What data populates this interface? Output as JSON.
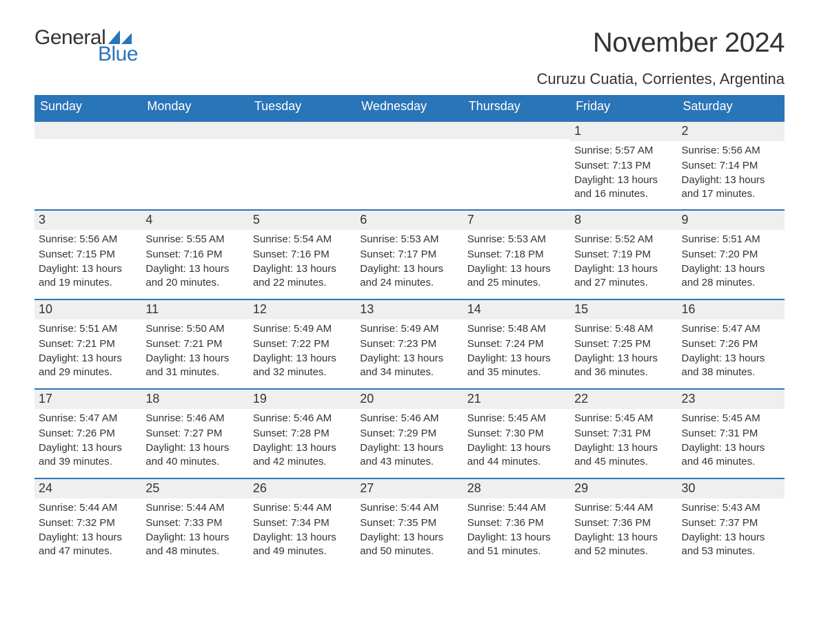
{
  "logo": {
    "top": "General",
    "bottom": "Blue"
  },
  "colors": {
    "brand_blue": "#2a74b8",
    "header_blue": "#2a74b8",
    "row_sep_blue": "#2a74b8",
    "day_header_bg": "#efefef",
    "text": "#333333",
    "background": "#ffffff"
  },
  "typography": {
    "family": "Arial, Helvetica, sans-serif",
    "month_title_size": 40,
    "location_size": 22,
    "weekday_size": 18,
    "daynum_size": 18,
    "body_size": 15
  },
  "month_title": "November 2024",
  "location": "Curuzu Cuatia, Corrientes, Argentina",
  "weekdays": [
    "Sunday",
    "Monday",
    "Tuesday",
    "Wednesday",
    "Thursday",
    "Friday",
    "Saturday"
  ],
  "weeks": [
    [
      null,
      null,
      null,
      null,
      null,
      {
        "d": "1",
        "sunrise": "5:57 AM",
        "sunset": "7:13 PM",
        "daylight": "13 hours and 16 minutes."
      },
      {
        "d": "2",
        "sunrise": "5:56 AM",
        "sunset": "7:14 PM",
        "daylight": "13 hours and 17 minutes."
      }
    ],
    [
      {
        "d": "3",
        "sunrise": "5:56 AM",
        "sunset": "7:15 PM",
        "daylight": "13 hours and 19 minutes."
      },
      {
        "d": "4",
        "sunrise": "5:55 AM",
        "sunset": "7:16 PM",
        "daylight": "13 hours and 20 minutes."
      },
      {
        "d": "5",
        "sunrise": "5:54 AM",
        "sunset": "7:16 PM",
        "daylight": "13 hours and 22 minutes."
      },
      {
        "d": "6",
        "sunrise": "5:53 AM",
        "sunset": "7:17 PM",
        "daylight": "13 hours and 24 minutes."
      },
      {
        "d": "7",
        "sunrise": "5:53 AM",
        "sunset": "7:18 PM",
        "daylight": "13 hours and 25 minutes."
      },
      {
        "d": "8",
        "sunrise": "5:52 AM",
        "sunset": "7:19 PM",
        "daylight": "13 hours and 27 minutes."
      },
      {
        "d": "9",
        "sunrise": "5:51 AM",
        "sunset": "7:20 PM",
        "daylight": "13 hours and 28 minutes."
      }
    ],
    [
      {
        "d": "10",
        "sunrise": "5:51 AM",
        "sunset": "7:21 PM",
        "daylight": "13 hours and 29 minutes."
      },
      {
        "d": "11",
        "sunrise": "5:50 AM",
        "sunset": "7:21 PM",
        "daylight": "13 hours and 31 minutes."
      },
      {
        "d": "12",
        "sunrise": "5:49 AM",
        "sunset": "7:22 PM",
        "daylight": "13 hours and 32 minutes."
      },
      {
        "d": "13",
        "sunrise": "5:49 AM",
        "sunset": "7:23 PM",
        "daylight": "13 hours and 34 minutes."
      },
      {
        "d": "14",
        "sunrise": "5:48 AM",
        "sunset": "7:24 PM",
        "daylight": "13 hours and 35 minutes."
      },
      {
        "d": "15",
        "sunrise": "5:48 AM",
        "sunset": "7:25 PM",
        "daylight": "13 hours and 36 minutes."
      },
      {
        "d": "16",
        "sunrise": "5:47 AM",
        "sunset": "7:26 PM",
        "daylight": "13 hours and 38 minutes."
      }
    ],
    [
      {
        "d": "17",
        "sunrise": "5:47 AM",
        "sunset": "7:26 PM",
        "daylight": "13 hours and 39 minutes."
      },
      {
        "d": "18",
        "sunrise": "5:46 AM",
        "sunset": "7:27 PM",
        "daylight": "13 hours and 40 minutes."
      },
      {
        "d": "19",
        "sunrise": "5:46 AM",
        "sunset": "7:28 PM",
        "daylight": "13 hours and 42 minutes."
      },
      {
        "d": "20",
        "sunrise": "5:46 AM",
        "sunset": "7:29 PM",
        "daylight": "13 hours and 43 minutes."
      },
      {
        "d": "21",
        "sunrise": "5:45 AM",
        "sunset": "7:30 PM",
        "daylight": "13 hours and 44 minutes."
      },
      {
        "d": "22",
        "sunrise": "5:45 AM",
        "sunset": "7:31 PM",
        "daylight": "13 hours and 45 minutes."
      },
      {
        "d": "23",
        "sunrise": "5:45 AM",
        "sunset": "7:31 PM",
        "daylight": "13 hours and 46 minutes."
      }
    ],
    [
      {
        "d": "24",
        "sunrise": "5:44 AM",
        "sunset": "7:32 PM",
        "daylight": "13 hours and 47 minutes."
      },
      {
        "d": "25",
        "sunrise": "5:44 AM",
        "sunset": "7:33 PM",
        "daylight": "13 hours and 48 minutes."
      },
      {
        "d": "26",
        "sunrise": "5:44 AM",
        "sunset": "7:34 PM",
        "daylight": "13 hours and 49 minutes."
      },
      {
        "d": "27",
        "sunrise": "5:44 AM",
        "sunset": "7:35 PM",
        "daylight": "13 hours and 50 minutes."
      },
      {
        "d": "28",
        "sunrise": "5:44 AM",
        "sunset": "7:36 PM",
        "daylight": "13 hours and 51 minutes."
      },
      {
        "d": "29",
        "sunrise": "5:44 AM",
        "sunset": "7:36 PM",
        "daylight": "13 hours and 52 minutes."
      },
      {
        "d": "30",
        "sunrise": "5:43 AM",
        "sunset": "7:37 PM",
        "daylight": "13 hours and 53 minutes."
      }
    ]
  ],
  "labels": {
    "sunrise_prefix": "Sunrise: ",
    "sunset_prefix": "Sunset: ",
    "daylight_prefix": "Daylight: "
  }
}
